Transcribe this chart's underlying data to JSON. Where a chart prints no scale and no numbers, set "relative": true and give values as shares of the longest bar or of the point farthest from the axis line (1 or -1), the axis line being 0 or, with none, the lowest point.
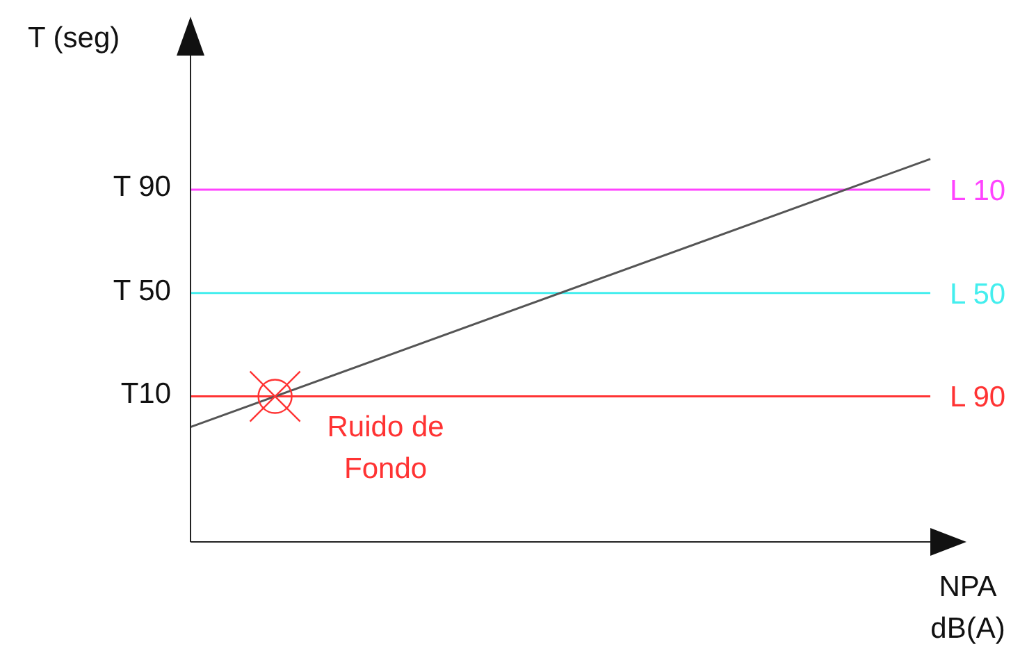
{
  "chart_data": {
    "type": "line",
    "xlabel": "NPA dB(A)",
    "ylabel": "T (seg)",
    "relative": true,
    "categories": [
      null,
      null
    ],
    "series": [
      {
        "color": "#555555",
        "values": [
          0.3,
          1
        ]
      }
    ],
    "ref_lines": [
      {
        "axis": "y",
        "value": 0.92,
        "label": "L 10",
        "color": "#ff44ff"
      },
      {
        "axis": "y",
        "value": 0.65,
        "label": "L 50",
        "color": "#44eeee"
      },
      {
        "axis": "y",
        "value": 0.38,
        "label": "L 90",
        "color": "#ff3333"
      }
    ],
    "annotations": [
      "T 90",
      "T 50",
      "T10",
      "Ruido de Fondo"
    ]
  }
}
